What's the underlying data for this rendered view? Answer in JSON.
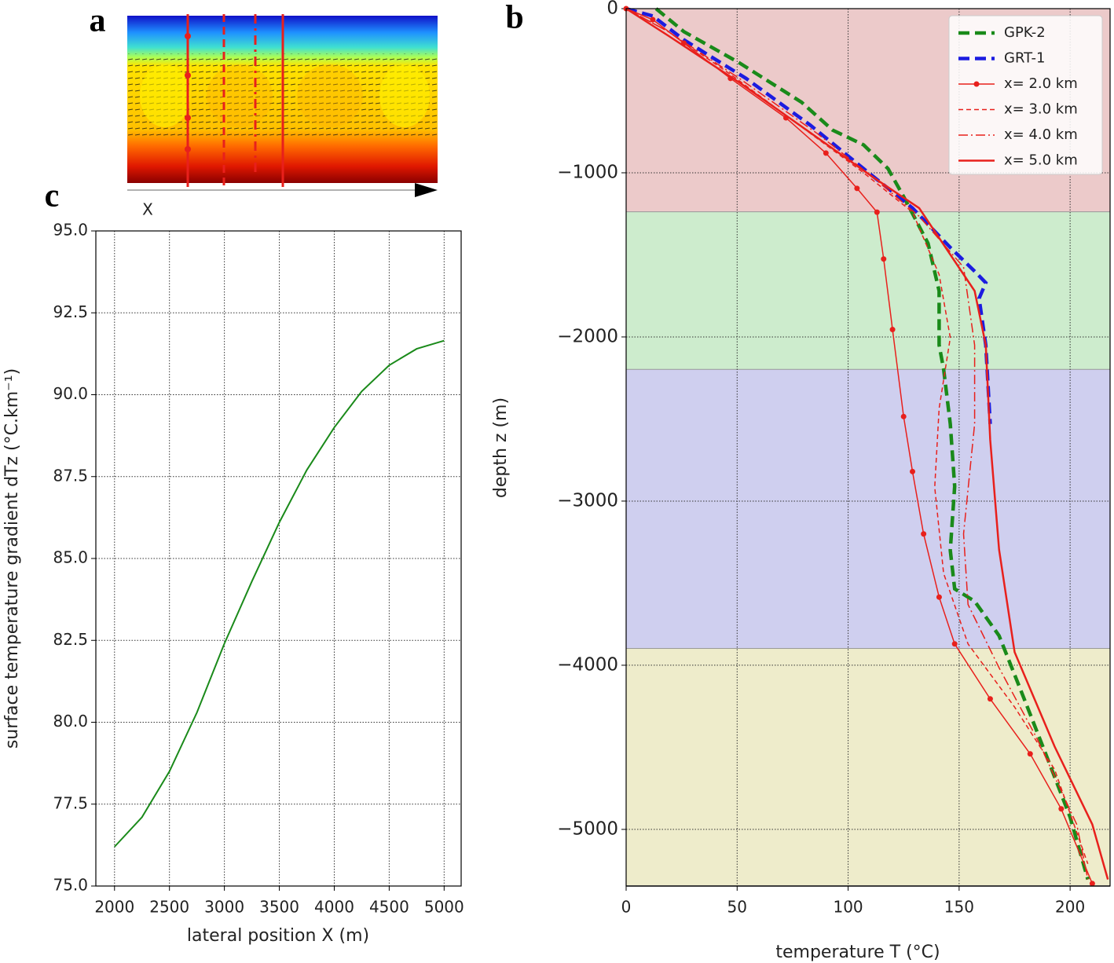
{
  "chart_data": [
    {
      "type": "image",
      "panel": "a",
      "xlabel": "X"
    },
    {
      "type": "line",
      "panel": "b",
      "xlabel": "temperature T (°C)",
      "ylabel": "depth z (m)",
      "xlim": [
        0,
        218
      ],
      "ylim": [
        -5345,
        0
      ],
      "xticks": [
        0,
        50,
        100,
        150,
        200
      ],
      "yticks": [
        0,
        {
          "value": -1000,
          "label": "−1000"
        },
        {
          "value": -2000,
          "label": "−2000"
        },
        {
          "value": -3000,
          "label": "−3000"
        },
        {
          "value": -4000,
          "label": "−4000"
        },
        {
          "value": -5000,
          "label": "−5000"
        }
      ],
      "grid": true,
      "legend": "upper right",
      "layers": [
        {
          "top": 0,
          "bottom": -1240,
          "color": "#eccaca"
        },
        {
          "top": -1240,
          "bottom": -2200,
          "color": "#cdeccd"
        },
        {
          "top": -2200,
          "bottom": -3900,
          "color": "#cfcfef"
        },
        {
          "top": -3900,
          "bottom": -5345,
          "color": "#eeeccb"
        }
      ],
      "series": [
        {
          "name": "GPK-2",
          "color": "#1a8a1a",
          "style": "dashed",
          "width": 4.5,
          "x": [
            13.5,
            26,
            51,
            79,
            93,
            107,
            118,
            125,
            136,
            141,
            141,
            143,
            146,
            148,
            146,
            148,
            157,
            168,
            178,
            189,
            200,
            208
          ],
          "y": [
            0,
            -140,
            -330,
            -570,
            -740,
            -830,
            -975,
            -1145,
            -1430,
            -1720,
            -2050,
            -2195,
            -2530,
            -2910,
            -3300,
            -3535,
            -3610,
            -3820,
            -4160,
            -4540,
            -4925,
            -5305
          ]
        },
        {
          "name": "GRT-1",
          "color": "#1c1ce0",
          "style": "dashed",
          "width": 4.5,
          "x": [
            0,
            12,
            26,
            54,
            83,
            107,
            129,
            146,
            157,
            162,
            159,
            162,
            164
          ],
          "y": [
            0,
            -45,
            -190,
            -425,
            -710,
            -975,
            -1215,
            -1455,
            -1600,
            -1670,
            -1765,
            -2050,
            -2530
          ]
        },
        {
          "name": "x= 2.0 km",
          "color": "#e8201c",
          "style": "solid",
          "width": 1.5,
          "marker": "o",
          "x": [
            0,
            12,
            26,
            47,
            72,
            90,
            104,
            113,
            116,
            120,
            125,
            129,
            134,
            141,
            148,
            164,
            182,
            196,
            210
          ],
          "y": [
            0,
            -67,
            -210,
            -425,
            -665,
            -880,
            -1095,
            -1240,
            -1525,
            -1955,
            -2485,
            -2820,
            -3200,
            -3585,
            -3870,
            -4205,
            -4540,
            -4875,
            -5330
          ]
        },
        {
          "name": "x= 3.0 km",
          "color": "#e8201c",
          "style": "dashed",
          "width": 1.5,
          "x": [
            0,
            19,
            47,
            83,
            107,
            129,
            141,
            146,
            141,
            139,
            143,
            154,
            175,
            193,
            208
          ],
          "y": [
            0,
            -140,
            -400,
            -760,
            -1000,
            -1240,
            -1620,
            -2005,
            -2435,
            -2915,
            -3440,
            -3870,
            -4255,
            -4635,
            -5210
          ]
        },
        {
          "name": "x= 4.0 km",
          "color": "#e8201c",
          "style": "dashdot",
          "width": 1.5,
          "x": [
            0,
            19,
            51,
            86,
            111,
            132,
            152,
            157,
            157,
            152,
            154,
            168,
            185,
            203,
            208
          ],
          "y": [
            0,
            -140,
            -425,
            -760,
            -1025,
            -1265,
            -1575,
            -2050,
            -2530,
            -3200,
            -3630,
            -4015,
            -4445,
            -4970,
            -5305
          ]
        },
        {
          "name": "x= 5.0 km",
          "color": "#e8201c",
          "style": "solid",
          "width": 2.5,
          "x": [
            0,
            19,
            51,
            86,
            111,
            132,
            157,
            162,
            164,
            168,
            175,
            193,
            210,
            217
          ],
          "y": [
            0,
            -165,
            -450,
            -785,
            -1025,
            -1215,
            -1720,
            -2050,
            -2625,
            -3295,
            -3920,
            -4495,
            -4970,
            -5305
          ]
        }
      ]
    },
    {
      "type": "line",
      "panel": "c",
      "xlabel": "lateral position X (m)",
      "ylabel": "surface temperature gradient dTz (°C.km⁻¹)",
      "xlim": [
        1830,
        5155
      ],
      "ylim": [
        75,
        95
      ],
      "xticks": [
        2000,
        2500,
        3000,
        3500,
        4000,
        4500,
        5000
      ],
      "yticks": [
        {
          "value": 75,
          "label": "75.0"
        },
        77.5,
        {
          "value": 80,
          "label": "80.0"
        },
        82.5,
        {
          "value": 85,
          "label": "85.0"
        },
        87.5,
        {
          "value": 90,
          "label": "90.0"
        },
        92.5,
        {
          "value": 95,
          "label": "95.0"
        }
      ],
      "grid": true,
      "series": [
        {
          "color": "#1a8a1a",
          "style": "solid",
          "width": 2,
          "x": [
            2000,
            2250,
            2500,
            2750,
            3000,
            3250,
            3500,
            3750,
            4000,
            4250,
            4500,
            4750,
            5000
          ],
          "y": [
            76.2,
            77.1,
            78.5,
            80.3,
            82.4,
            84.3,
            86.1,
            87.7,
            89.0,
            90.1,
            90.9,
            91.4,
            91.65
          ]
        }
      ]
    }
  ]
}
